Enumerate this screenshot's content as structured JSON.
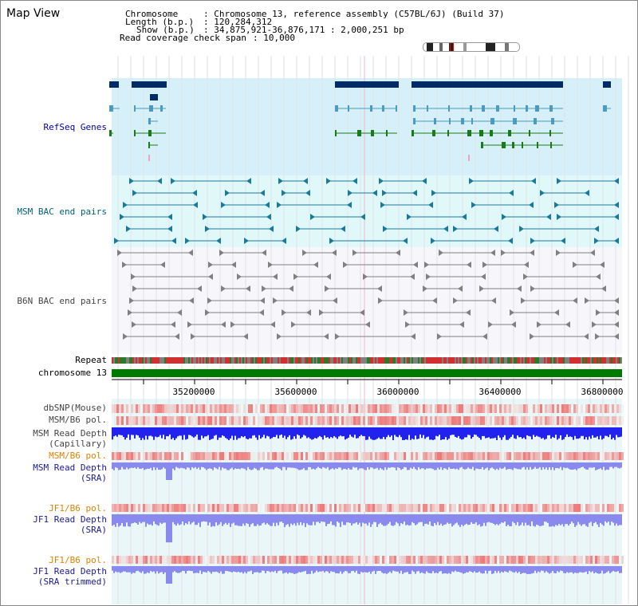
{
  "header": {
    "title": "Map View",
    "chromosome_label": "Chromosome",
    "chromosome_value": ": Chromosome 13, reference assembly (C57BL/6J) (Build 37)",
    "length_label": "Length (b.p.)",
    "length_value": ": 120,284,312",
    "show_label": "Show (b.p.)",
    "show_value": ": 34,875,921-36,876,171 : 2,000,251 bp",
    "coverage_label": "Read coverage check span",
    "coverage_value": ": 10,000"
  },
  "tracks": {
    "refseq": "RefSeq Genes",
    "msm_bac": "MSM BAC end pairs",
    "b6n_bac": "B6N BAC end pairs",
    "repeat": "Repeat",
    "chromosome": "chromosome 13",
    "dbsnp": "dbSNP(Mouse)",
    "msm_b6_pol_1": "MSM/B6 pol.",
    "msm_depth_cap_1": "MSM Read Depth",
    "msm_depth_cap_2": "(Capillary)",
    "msm_b6_pol_2": "MSM/B6 pol.",
    "msm_depth_sra_1": "MSM Read Depth",
    "msm_depth_sra_2": "(SRA)",
    "jf1_pol_1": "JF1/B6 pol.",
    "jf1_depth_sra_1": "JF1 Read Depth",
    "jf1_depth_sra_2": "(SRA)",
    "jf1_pol_2": "JF1/B6 pol.",
    "jf1_depth_trim_1": "JF1 Read Depth",
    "jf1_depth_trim_2": "(SRA trimmed)"
  },
  "axis": {
    "ticks": [
      "35200000",
      "35600000",
      "36000000",
      "36400000",
      "36800000"
    ],
    "start_bp": 34875921,
    "end_bp": 36876171
  },
  "colors": {
    "refseq_bg": "#d6f0fa",
    "bac_bg": "#e0f8fa",
    "b6n_bg": "#f6f6fb",
    "lower_bg": "#eaf7f8",
    "gene_dark": "#002b66",
    "gene_teal": "#4a9bbf",
    "gene_green": "#1a7a1a",
    "msm_bac": "#1a7a9a",
    "b6n_bac": "#808080",
    "chromosome": "#007a00",
    "pol": "#ee4444",
    "depth": "#2222ee",
    "depth_light": "#8a8aee"
  }
}
